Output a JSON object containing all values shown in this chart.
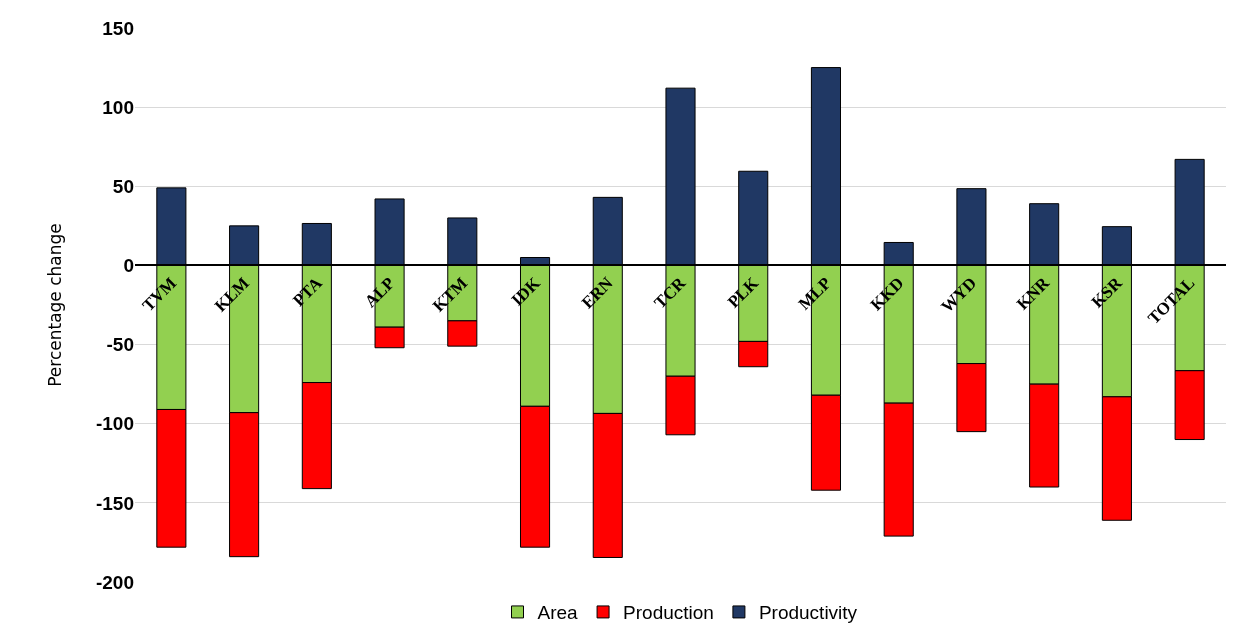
{
  "chart_data": {
    "type": "bar",
    "stacked": true,
    "ylabel": "Percentage change",
    "categories": [
      "TVM",
      "KLM",
      "PTA",
      "ALP",
      "KTM",
      "IDK",
      "ERN",
      "TCR",
      "PLK",
      "MLP",
      "KKD",
      "WYD",
      "KNR",
      "KSR",
      "TOTAL"
    ],
    "series": [
      {
        "name": "Area",
        "color": "#92d050",
        "values": [
          -91,
          -93,
          -74,
          -39,
          -35,
          -89,
          -93.5,
          -70,
          -48,
          -82,
          -87,
          -62,
          -75,
          -83,
          -66.5
        ]
      },
      {
        "name": "Production",
        "color": "#ff0000",
        "values": [
          -87,
          -91,
          -67,
          -13,
          -16,
          -89,
          -91,
          -37,
          -16,
          -60,
          -84,
          -43,
          -65,
          -78,
          -43.5
        ]
      },
      {
        "name": "Productivity",
        "color": "#203864",
        "values": [
          49,
          25,
          26.5,
          42,
          30,
          5,
          43,
          112,
          59.5,
          125,
          14.5,
          48.5,
          39,
          24.5,
          67
        ]
      }
    ],
    "ylim": [
      -200,
      150
    ],
    "yticks": [
      -200,
      -150,
      -100,
      -50,
      0,
      50,
      100,
      150
    ],
    "grid": "y",
    "legend": "bottom"
  }
}
